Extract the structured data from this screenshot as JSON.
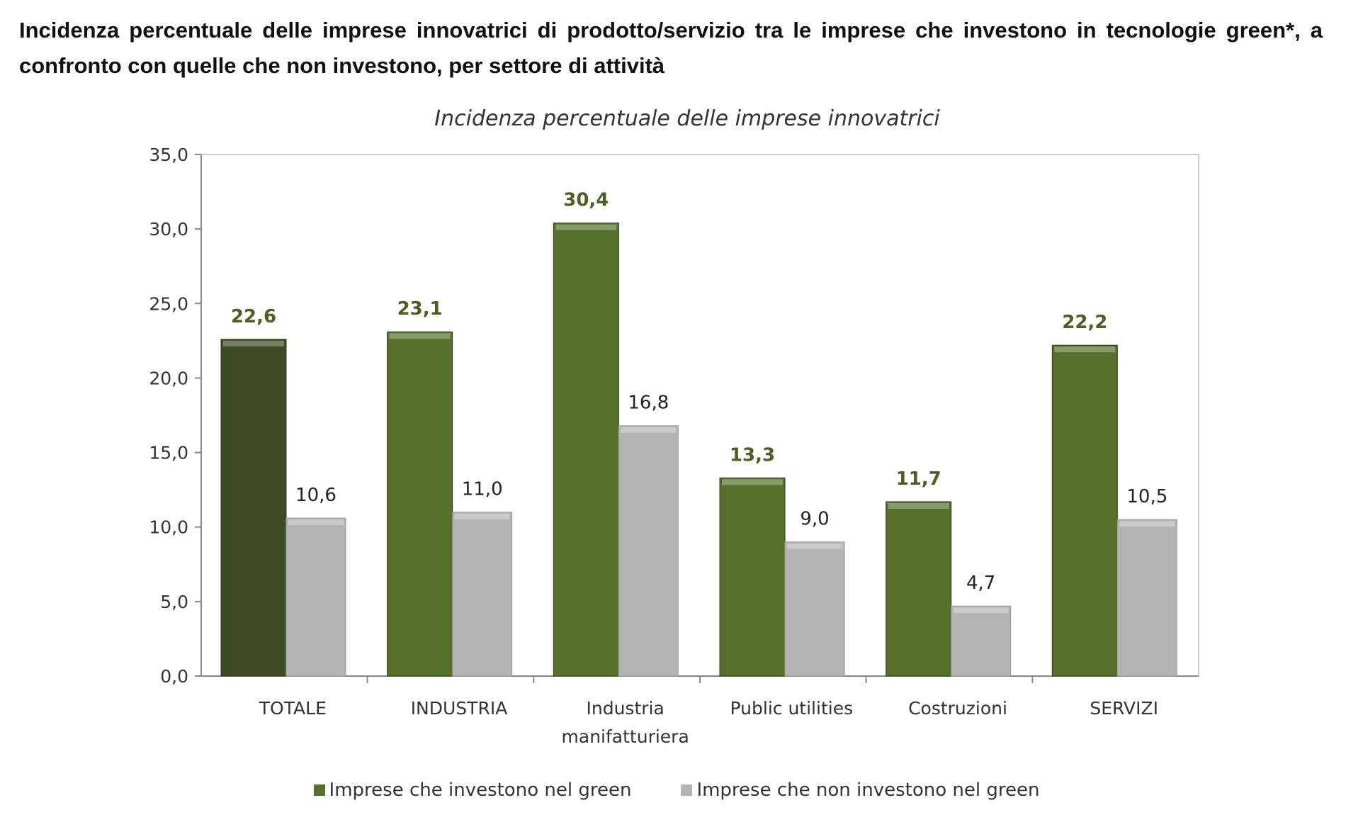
{
  "title": "Incidenza percentuale delle imprese innovatrici di prodotto/servizio tra le imprese che investono in tecnologie green*, a confronto con quelle che non investono, per settore di attività",
  "chart_data": {
    "type": "bar",
    "title": "Incidenza percentuale delle imprese innovatrici",
    "categories": [
      "TOTALE",
      "INDUSTRIA",
      "Industria\nmanifatturiera",
      "Public utilities",
      "Costruzioni",
      "SERVIZI"
    ],
    "series": [
      {
        "name": "Imprese che investono nel green",
        "values": [
          22.6,
          23.1,
          30.4,
          13.3,
          11.7,
          22.2
        ],
        "labels": [
          "22,6",
          "23,1",
          "30,4",
          "13,3",
          "11,7",
          "22,2"
        ],
        "color": "#55702a",
        "highlight_color": "#3d4a22",
        "label_color": "#4e5f26"
      },
      {
        "name": "Imprese che non investono nel green",
        "values": [
          10.6,
          11.0,
          16.8,
          9.0,
          4.7,
          10.5
        ],
        "labels": [
          "10,6",
          "11,0",
          "16,8",
          "9,0",
          "4,7",
          "10,5"
        ],
        "color": "#b3b3b3",
        "label_color": "#222222"
      }
    ],
    "yticks": [
      "0,0",
      "5,0",
      "10,0",
      "15,0",
      "20,0",
      "25,0",
      "30,0",
      "35,0"
    ],
    "ylim": [
      0,
      35
    ],
    "grid": false,
    "legend": "bottom"
  }
}
